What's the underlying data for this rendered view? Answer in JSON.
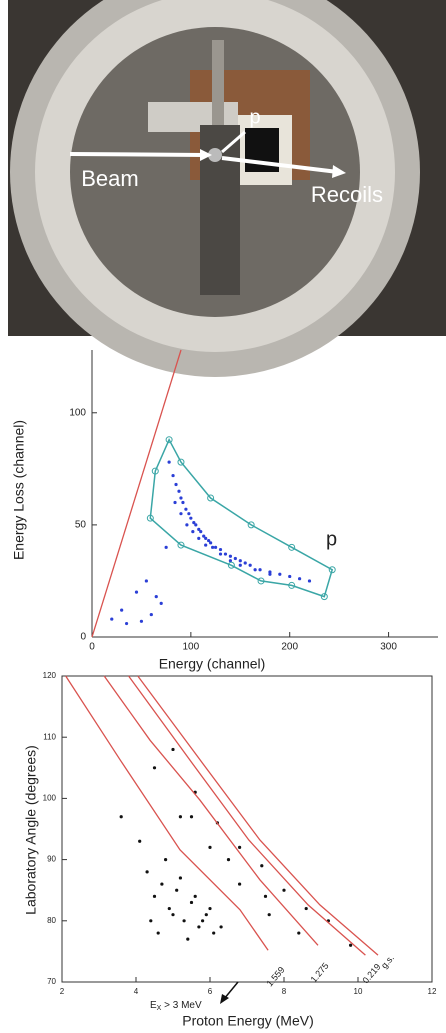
{
  "photo": {
    "labels": [
      "Beam",
      "Recoils",
      "p"
    ]
  },
  "chart_data": [
    {
      "type": "scatter",
      "xlabel": "Energy (channel)",
      "ylabel": "Energy Loss (channel)",
      "annotation": "p",
      "xlim": [
        0,
        350
      ],
      "ylim": [
        0,
        128
      ],
      "xticks": [
        0,
        100,
        200,
        300
      ],
      "yticks": [
        0,
        50,
        100
      ],
      "series": [
        {
          "color": "#2b3fd6",
          "mode": "markers",
          "x": [
            78,
            82,
            85,
            88,
            90,
            92,
            95,
            98,
            100,
            103,
            105,
            108,
            110,
            113,
            115,
            118,
            120,
            125,
            130,
            135,
            140,
            145,
            150,
            155,
            160,
            170,
            180,
            190,
            200,
            210,
            220,
            84,
            90,
            96,
            102,
            108,
            115,
            122,
            130,
            140,
            150,
            165,
            180,
            20,
            35,
            50,
            60,
            70,
            45,
            55,
            65,
            30,
            75
          ],
          "values": [
            78,
            72,
            68,
            65,
            62,
            60,
            57,
            55,
            53,
            51,
            50,
            48,
            47,
            45,
            44,
            43,
            42,
            40,
            39,
            37,
            36,
            35,
            34,
            33,
            32,
            30,
            29,
            28,
            27,
            26,
            25,
            60,
            55,
            50,
            47,
            44,
            41,
            40,
            37,
            34,
            32,
            30,
            28,
            8,
            6,
            7,
            10,
            15,
            20,
            25,
            18,
            12,
            40
          ]
        },
        {
          "color": "#d9534f",
          "mode": "line",
          "x": [
            0,
            90
          ],
          "values": [
            0,
            128
          ]
        },
        {
          "color": "#3aa6a6",
          "mode": "gate",
          "x": [
            78,
            90,
            120,
            161,
            202,
            243,
            235,
            202,
            171,
            141,
            90,
            59,
            64
          ],
          "values": [
            88,
            78,
            62,
            50,
            40,
            30,
            18,
            23,
            25,
            32,
            41,
            53,
            74
          ]
        }
      ]
    },
    {
      "type": "scatter",
      "xlabel": "Proton Energy (MeV)",
      "ylabel": "Laboratory Angle (degrees)",
      "annotation": {
        "main": "E",
        "sub": "X",
        "rest": " > 3 MeV"
      },
      "xlim": [
        2,
        12
      ],
      "ylim": [
        70,
        120
      ],
      "xticks": [
        2,
        4,
        6,
        8,
        10,
        12
      ],
      "yticks": [
        70,
        80,
        90,
        100,
        110,
        120
      ],
      "series": [
        {
          "color": "#111111",
          "mode": "markers",
          "x": [
            4.3,
            4.5,
            4.7,
            4.9,
            5.1,
            5.3,
            5.5,
            5.7,
            5.9,
            6.1,
            4.4,
            4.8,
            5.2,
            5.6,
            6.0,
            6.3,
            4.6,
            5.0,
            5.4,
            5.8,
            5.0,
            5.6,
            6.2,
            6.8,
            7.4,
            8.0,
            8.6,
            9.2,
            4.5,
            5.2,
            6.0,
            6.8,
            7.6,
            8.4,
            5.5,
            6.5,
            7.5,
            9.8,
            3.6,
            4.1
          ],
          "values": [
            88,
            84,
            86,
            82,
            85,
            80,
            83,
            79,
            81,
            78,
            80,
            90,
            87,
            84,
            82,
            79,
            78,
            81,
            77,
            80,
            108,
            101,
            96,
            92,
            89,
            85,
            82,
            80,
            105,
            97,
            92,
            86,
            81,
            78,
            97,
            90,
            84,
            76,
            97,
            93
          ]
        },
        {
          "name": "g.s.",
          "color": "#d9534f",
          "mode": "line",
          "x": [
            4.05,
            5.73,
            7.35,
            8.97,
            10.54
          ],
          "values": [
            120,
            106.3,
            93.2,
            82.6,
            74.4
          ]
        },
        {
          "name": "0.219",
          "color": "#d9534f",
          "mode": "line",
          "x": [
            3.8,
            5.45,
            7.05,
            8.65,
            10.2
          ],
          "values": [
            120,
            106.3,
            93.2,
            82.6,
            74.4
          ]
        },
        {
          "name": "1.275",
          "color": "#d9534f",
          "mode": "line",
          "x": [
            3.14,
            4.38,
            5.73,
            7.35,
            8.92
          ],
          "values": [
            120,
            109.5,
            99.7,
            86.7,
            76
          ]
        },
        {
          "name": "1.559",
          "color": "#d9534f",
          "mode": "line",
          "x": [
            2.1,
            3.57,
            5.19,
            6.81,
            7.57
          ],
          "values": [
            120,
            106.3,
            91.6,
            81.8,
            75.2
          ]
        }
      ]
    }
  ]
}
